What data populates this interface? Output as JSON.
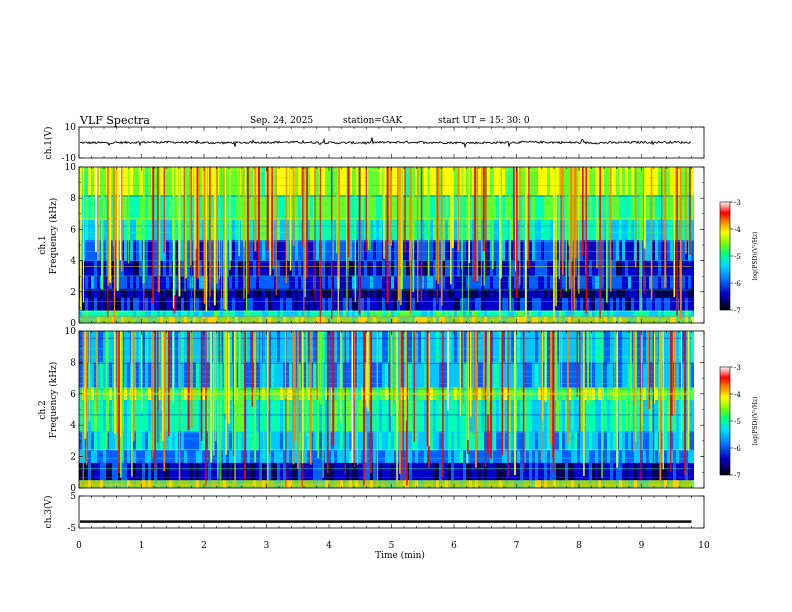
{
  "header": {
    "title": "VLF  Spectra",
    "date": "Sep. 24, 2025",
    "station": "station=GAK",
    "start": "start  UT  =   15: 30: 0"
  },
  "chart_data": [
    {
      "type": "line",
      "panel": "ch1-waveform",
      "ylabel": "ch.1(V)",
      "ylim": [
        -10,
        10
      ],
      "y_ticks": [
        "10",
        "-10"
      ],
      "xlim": [
        0,
        9.8
      ],
      "description_of_series": "dense noisy waveform centered near 0 V with amplitude about ±1 V, occasional spikes"
    },
    {
      "type": "heatmap",
      "panel": "ch1-spectrogram",
      "ylabel": "ch.1\nFrequency  (kHz)",
      "ylim": [
        0,
        10
      ],
      "y_ticks": [
        "0",
        "2",
        "4",
        "6",
        "8",
        "10"
      ],
      "xlim": [
        0,
        9.8
      ],
      "colorbar": {
        "label": "log(PSD)(V²/Hz)",
        "range": [
          -7,
          -3
        ],
        "ticks": [
          "-3",
          "-4",
          "-5",
          "-6",
          "-7"
        ]
      }
    },
    {
      "type": "heatmap",
      "panel": "ch2-spectrogram",
      "ylabel": "ch.2\nFrequency  (kHz)",
      "ylim": [
        0,
        10
      ],
      "y_ticks": [
        "0",
        "2",
        "4",
        "6",
        "8",
        "10"
      ],
      "xlim": [
        0,
        9.8
      ],
      "colorbar": {
        "label": "log(PSD)(V²/Hz)",
        "range": [
          -7,
          -3
        ],
        "ticks": [
          "-3",
          "-4",
          "-5",
          "-6",
          "-7"
        ]
      }
    },
    {
      "type": "line",
      "panel": "ch3-waveform",
      "ylabel": "ch.3(V)",
      "ylim": [
        -5,
        5
      ],
      "y_ticks": [
        "5",
        "-5"
      ],
      "xlim": [
        0,
        9.8
      ],
      "description_of_series": "flat band near -3 V"
    }
  ],
  "x_axis": {
    "label": "Time  (min)",
    "ticks": [
      "0",
      "1",
      "2",
      "3",
      "4",
      "5",
      "6",
      "7",
      "8",
      "9",
      "10"
    ],
    "range": [
      0,
      10
    ]
  },
  "colorbar_label": "log(PSD)(V²/Hz)",
  "colors": {
    "colormap": [
      "#000050",
      "#0000c8",
      "#0060ff",
      "#00c8ff",
      "#00ffb0",
      "#60ff30",
      "#ffff00",
      "#ff8000",
      "#ff0000",
      "#ffffff"
    ]
  }
}
